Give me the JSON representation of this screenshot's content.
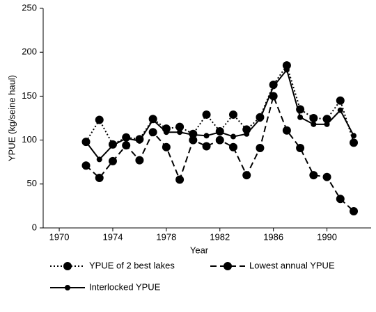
{
  "chart_data": {
    "type": "line",
    "x_label": "Year",
    "y_label": "YPUE (kg/seine haul)",
    "x": [
      1972,
      1973,
      1974,
      1975,
      1976,
      1977,
      1978,
      1979,
      1980,
      1981,
      1982,
      1983,
      1984,
      1985,
      1986,
      1987,
      1988,
      1989,
      1990,
      1991,
      1992
    ],
    "series": [
      {
        "name": "YPUE of 2 best lakes",
        "color": "#000000",
        "dash": "dotted",
        "values": [
          98,
          123,
          95,
          103,
          101,
          124,
          113,
          115,
          107,
          129,
          110,
          129,
          112,
          126,
          163,
          185,
          135,
          125,
          124,
          145,
          97
        ]
      },
      {
        "name": "Lowest annual YPUE",
        "color": "#000000",
        "dash": "dashed",
        "values": [
          71,
          57,
          76,
          94,
          77,
          109,
          92,
          55,
          100,
          93,
          100,
          92,
          60,
          91,
          150,
          111,
          91,
          60,
          58,
          33,
          19
        ]
      },
      {
        "name": "Interlocked YPUE",
        "color": "#000000",
        "dash": "solid",
        "values": [
          98,
          78,
          94,
          102,
          99,
          123,
          109,
          109,
          106,
          105,
          109,
          104,
          107,
          124,
          161,
          180,
          126,
          118,
          118,
          134,
          105
        ]
      }
    ],
    "xlim": [
      1968.8,
      1993.3
    ],
    "xticks": [
      1970,
      1974,
      1978,
      1982,
      1986,
      1990
    ],
    "ylim": [
      0,
      250
    ],
    "yticks": [
      0,
      50,
      100,
      150,
      200,
      250
    ],
    "grid": false
  }
}
